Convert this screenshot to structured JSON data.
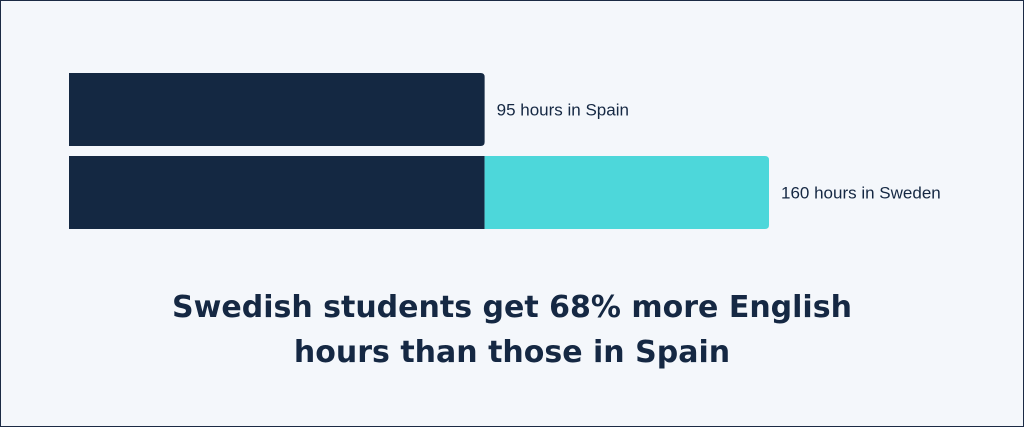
{
  "chart_data": {
    "type": "bar",
    "orientation": "horizontal",
    "categories": [
      "Spain",
      "Sweden"
    ],
    "values": [
      95,
      160
    ],
    "labels": [
      "95 hours in Spain",
      "160 hours in Sweden"
    ],
    "baseline_value": 95,
    "caption_lines": [
      "Swedish students get 68% more English",
      "hours than those in Spain"
    ],
    "legend": "none",
    "grid": false
  },
  "colors": {
    "background": "#f4f7fb",
    "primary_bar": "#142842",
    "extra_bar": "#4dd7da",
    "text": "#152843",
    "border": "#1b2a44"
  }
}
